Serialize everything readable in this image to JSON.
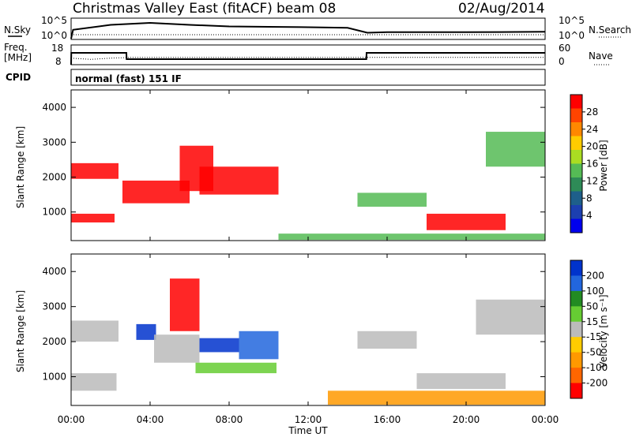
{
  "header": {
    "title": "Christmas Valley East (fitACF)",
    "beam": "beam 08",
    "date": "02/Aug/2014"
  },
  "noise_panel": {
    "left_label": "N.Sky",
    "left_ticks": [
      "10^5",
      "10^0"
    ],
    "right_ticks": [
      "10^5",
      "10^0"
    ],
    "right_label": "N.Search"
  },
  "freq_panel": {
    "left_label_line1": "Freq.",
    "left_label_line2": "[MHz]",
    "left_ticks": [
      "18",
      "8"
    ],
    "right_ticks": [
      "60",
      "0"
    ],
    "right_label": "Nave"
  },
  "cpid": {
    "label": "CPID",
    "text": "normal (fast) 151 IF"
  },
  "x_axis": {
    "label": "Time UT",
    "ticks": [
      "00:00",
      "04:00",
      "08:00",
      "12:00",
      "16:00",
      "20:00",
      "00:00"
    ]
  },
  "y_axis": {
    "label": "Slant Range [km]",
    "ticks": [
      "1000",
      "2000",
      "3000",
      "4000"
    ]
  },
  "power_colorbar": {
    "label": "Power [dB]",
    "ticks": [
      "28",
      "24",
      "20",
      "16",
      "12",
      "8",
      "4"
    ],
    "colors": [
      "#ff0000",
      "#ff4400",
      "#ff8800",
      "#ffcc00",
      "#aadd22",
      "#55bb55",
      "#2e8b57",
      "#1e5f8a",
      "#1c3fb0",
      "#0000ee"
    ]
  },
  "velocity_colorbar": {
    "label": "Velocity [m s⁻¹]",
    "ticks": [
      "200",
      "100",
      "50",
      "15",
      "-15",
      "-50",
      "-100",
      "-200"
    ],
    "colors": [
      "#0033cc",
      "#2266dd",
      "#228b22",
      "#66cc33",
      "#bbbbbb",
      "#ffcc00",
      "#ff9900",
      "#ff6600",
      "#ff0000"
    ]
  },
  "chart_data": [
    {
      "type": "line",
      "title": "N.Sky / N.Search",
      "x_range_hours": [
        0,
        24
      ],
      "series": [
        {
          "name": "N.Sky",
          "x": [
            0,
            0.1,
            2,
            4,
            6,
            8,
            10,
            12,
            14,
            15,
            16,
            20,
            24
          ],
          "y_rel": [
            0.0,
            0.45,
            0.7,
            0.8,
            0.7,
            0.62,
            0.6,
            0.58,
            0.55,
            0.3,
            0.33,
            0.33,
            0.35
          ]
        }
      ]
    },
    {
      "type": "line",
      "title": "Freq / Nave",
      "x_range_hours": [
        0,
        24
      ],
      "ylim_freq_mhz": [
        8,
        18
      ],
      "series": [
        {
          "name": "Freq",
          "x": [
            0,
            0.01,
            2.8,
            2.81,
            14.95,
            14.96,
            24
          ],
          "y": [
            8,
            14,
            14,
            10.8,
            10.8,
            14,
            14
          ]
        },
        {
          "name": "Nave",
          "x": [
            0,
            1,
            2,
            3,
            24
          ],
          "y": [
            20,
            16,
            20,
            22,
            22
          ]
        }
      ]
    },
    {
      "type": "heatmap",
      "title": "Power",
      "x_range_hours": [
        0,
        24
      ],
      "ylim_km": [
        180,
        4500
      ],
      "regions": [
        {
          "t": [
            0,
            2.2
          ],
          "r": [
            700,
            950
          ],
          "level": "high"
        },
        {
          "t": [
            0,
            2.4
          ],
          "r": [
            1950,
            2400
          ],
          "level": "high"
        },
        {
          "t": [
            2.6,
            6
          ],
          "r": [
            1250,
            1900
          ],
          "level": "high"
        },
        {
          "t": [
            5.5,
            7.2
          ],
          "r": [
            1600,
            2900
          ],
          "level": "high"
        },
        {
          "t": [
            6.5,
            10.5
          ],
          "r": [
            1500,
            2300
          ],
          "level": "high"
        },
        {
          "t": [
            10.5,
            24
          ],
          "r": [
            200,
            380
          ],
          "level": "medium"
        },
        {
          "t": [
            14.5,
            18
          ],
          "r": [
            1150,
            1550
          ],
          "level": "medium"
        },
        {
          "t": [
            18,
            22
          ],
          "r": [
            480,
            950
          ],
          "level": "high"
        },
        {
          "t": [
            21,
            24
          ],
          "r": [
            2300,
            3300
          ],
          "level": "medium"
        }
      ]
    },
    {
      "type": "heatmap",
      "title": "Velocity",
      "x_range_hours": [
        0,
        24
      ],
      "ylim_km": [
        180,
        4500
      ],
      "regions": [
        {
          "t": [
            0,
            2.4
          ],
          "r": [
            2000,
            2600
          ],
          "level": "ground"
        },
        {
          "t": [
            0,
            2.3
          ],
          "r": [
            600,
            1100
          ],
          "level": "ground"
        },
        {
          "t": [
            3.3,
            4.3
          ],
          "r": [
            2050,
            2500
          ],
          "level": "+200"
        },
        {
          "t": [
            4.2,
            6.5
          ],
          "r": [
            1400,
            2200
          ],
          "level": "ground"
        },
        {
          "t": [
            5.0,
            6.5
          ],
          "r": [
            2300,
            3800
          ],
          "level": "-200"
        },
        {
          "t": [
            6.5,
            8.5
          ],
          "r": [
            1700,
            2100
          ],
          "level": "+200"
        },
        {
          "t": [
            8.5,
            10.5
          ],
          "r": [
            1500,
            2300
          ],
          "level": "+100"
        },
        {
          "t": [
            6.3,
            10.4
          ],
          "r": [
            1100,
            1400
          ],
          "level": "+50"
        },
        {
          "t": [
            13,
            24
          ],
          "r": [
            200,
            600
          ],
          "level": "-50"
        },
        {
          "t": [
            14.5,
            17.5
          ],
          "r": [
            1800,
            2300
          ],
          "level": "ground"
        },
        {
          "t": [
            17.5,
            22
          ],
          "r": [
            650,
            1100
          ],
          "level": "ground"
        },
        {
          "t": [
            20.5,
            24
          ],
          "r": [
            2200,
            3200
          ],
          "level": "ground"
        }
      ]
    }
  ]
}
